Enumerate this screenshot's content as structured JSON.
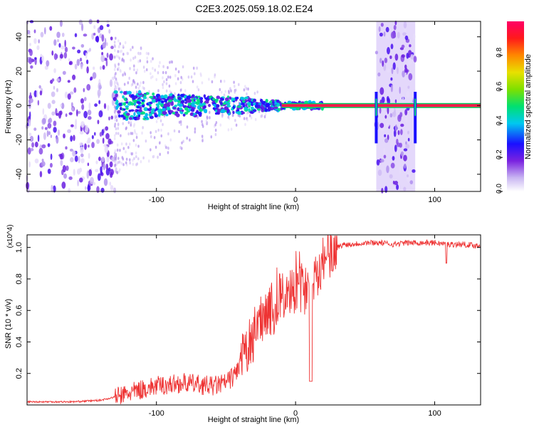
{
  "title": "C2E3.2025.059.18.02.E24",
  "chart_data": [
    {
      "type": "heatmap",
      "xlabel": "Height of straight line (km)",
      "ylabel": "Frequency (Hz)",
      "xlim": [
        -193,
        133
      ],
      "ylim": [
        -50,
        49
      ],
      "xticks": [
        -100,
        0,
        100
      ],
      "xtick_labels": [
        "-100",
        "0",
        "100"
      ],
      "yticks": [
        -40,
        -20,
        0,
        20,
        40
      ],
      "ytick_labels": [
        "-40",
        "-20",
        "0",
        "20",
        "40"
      ],
      "colorbar": {
        "label": "Normalized spectral amplitude",
        "range": [
          0,
          1
        ],
        "ticks": [
          0,
          0.2,
          0.4,
          0.6,
          0.8
        ],
        "tick_labels": [
          "0.0",
          "0.2",
          "0.4",
          "0.6",
          "0.8"
        ]
      },
      "tone_line": {
        "x_range": [
          -193,
          133
        ],
        "frequency": 0
      },
      "noise_bands": [
        [
          -193,
          -130
        ],
        [
          58,
          86
        ]
      ],
      "spread_segments": [
        {
          "x": -130,
          "half_width": 8
        },
        {
          "x": -100,
          "half_width": 6
        },
        {
          "x": -60,
          "half_width": 5
        },
        {
          "x": -30,
          "half_width": 3
        },
        {
          "x": -10,
          "half_width": 2
        },
        {
          "x": 10,
          "half_width": 2
        }
      ],
      "grid": false
    },
    {
      "type": "line",
      "xlabel": "Height of straight line (km)",
      "ylabel": "SNR (10 * v/v)",
      "y_multiplier": "(x10^4)",
      "xlim": [
        -193,
        133
      ],
      "ylim": [
        0,
        1.08
      ],
      "xticks": [
        -100,
        0,
        100
      ],
      "xtick_labels": [
        "-100",
        "0",
        "100"
      ],
      "yticks": [
        0.2,
        0.4,
        0.6,
        0.8,
        1.0
      ],
      "ytick_labels": [
        "0.2",
        "0.4",
        "0.6",
        "0.8",
        "1.0"
      ],
      "series": [
        {
          "color": "#ee3333",
          "x": [
            -193,
            -160,
            -140,
            -125,
            -110,
            -100,
            -90,
            -80,
            -70,
            -60,
            -50,
            -45,
            -40,
            -35,
            -30,
            -25,
            -20,
            -15,
            -10,
            -5,
            0,
            5,
            10,
            15,
            20,
            25,
            30,
            35,
            40,
            50,
            60,
            70,
            80,
            90,
            100,
            110,
            120,
            133
          ],
          "y": [
            0.02,
            0.02,
            0.03,
            0.06,
            0.1,
            0.12,
            0.13,
            0.14,
            0.13,
            0.12,
            0.14,
            0.18,
            0.25,
            0.35,
            0.45,
            0.55,
            0.62,
            0.6,
            0.7,
            0.68,
            0.75,
            0.72,
            0.78,
            0.85,
            0.92,
            0.97,
            1.0,
            1.02,
            1.02,
            1.03,
            1.03,
            1.02,
            1.03,
            1.03,
            1.03,
            1.02,
            1.02,
            1.01
          ]
        }
      ],
      "grid": false
    }
  ]
}
